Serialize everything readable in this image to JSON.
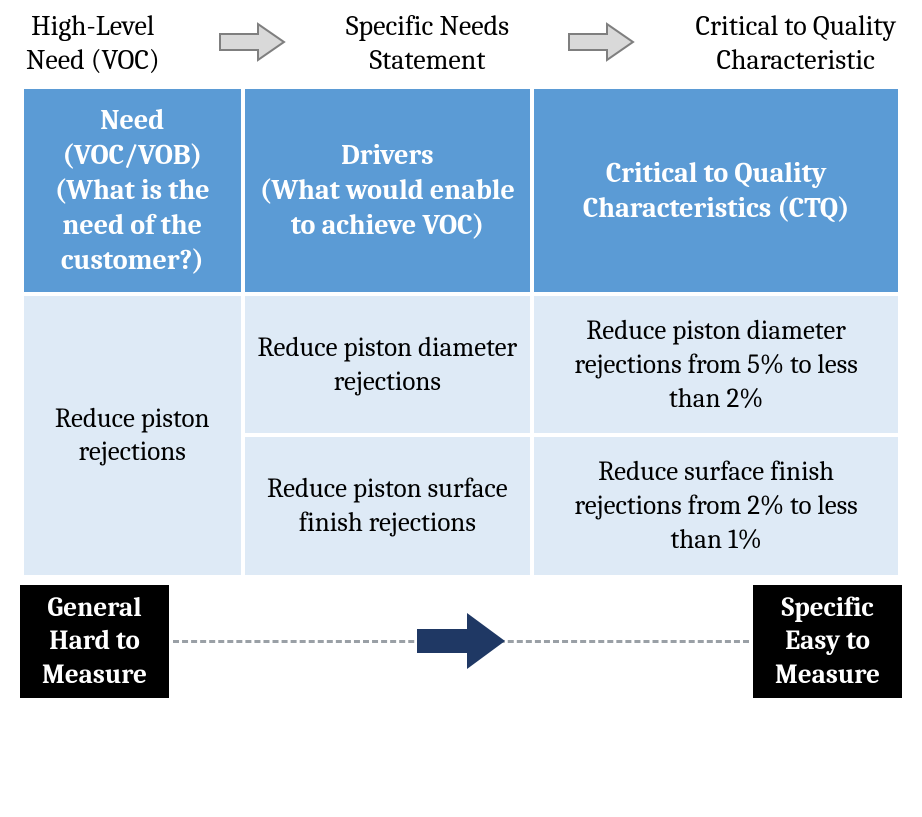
{
  "flow": {
    "step1": "High-Level\nNeed (VOC)",
    "step2": "Specific Needs\nStatement",
    "step3": "Critical to Quality\nCharacteristic",
    "arrow_stroke": "#7f7f7f",
    "arrow_fill": "#d9d9d9"
  },
  "table": {
    "header_bg": "#5b9bd5",
    "header_fg": "#ffffff",
    "cell_bg": "#deeaf6",
    "cell_fg": "#000000",
    "col_widths_pct": [
      25,
      33,
      42
    ],
    "headers": {
      "need": "Need (VOC/VOB) (What is the need of the customer?)",
      "drivers": "Drivers\n(What would enable to achieve VOC)",
      "ctq": "Critical to Quality Characteristics (CTQ)"
    },
    "need_cell": "Reduce piston rejections",
    "rows": [
      {
        "driver": "Reduce piston diameter rejections",
        "ctq": "Reduce piston diameter rejections from 5% to less than 2%"
      },
      {
        "driver": "Reduce piston surface finish rejections",
        "ctq": "Reduce surface finish rejections from 2% to less than 1%"
      }
    ]
  },
  "bottom": {
    "left": "General\nHard to\nMeasure",
    "right": "Specific\nEasy to\nMeasure",
    "box_bg": "#000000",
    "box_fg": "#ffffff",
    "dash_color": "#9aa0a6",
    "arrow_fill": "#1f3864"
  }
}
